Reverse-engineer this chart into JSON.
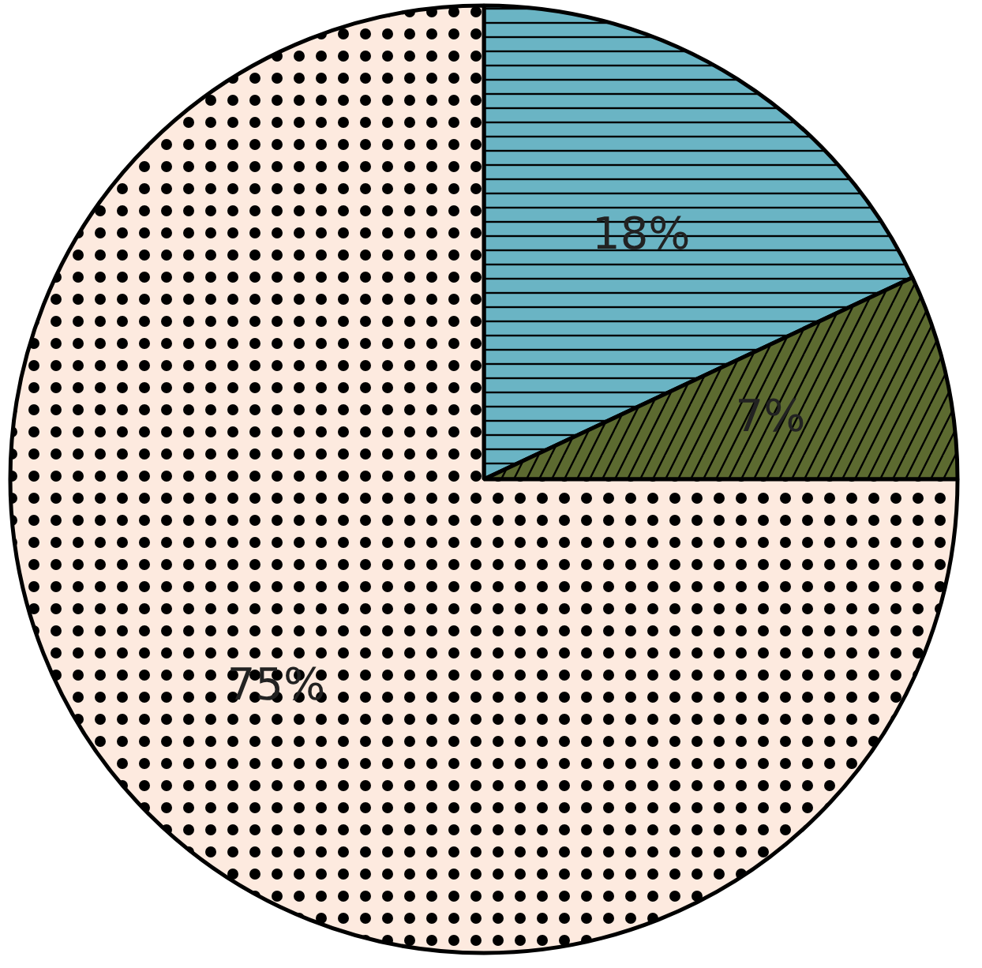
{
  "chart_data": {
    "type": "pie",
    "categories": [
      null,
      null,
      null
    ],
    "values": [
      18,
      7,
      75
    ],
    "colors": [
      "#6ab4c4",
      "#5c6a30",
      "#fdeadf"
    ],
    "value_labels": [
      "18%",
      "7%",
      "75%"
    ]
  }
}
